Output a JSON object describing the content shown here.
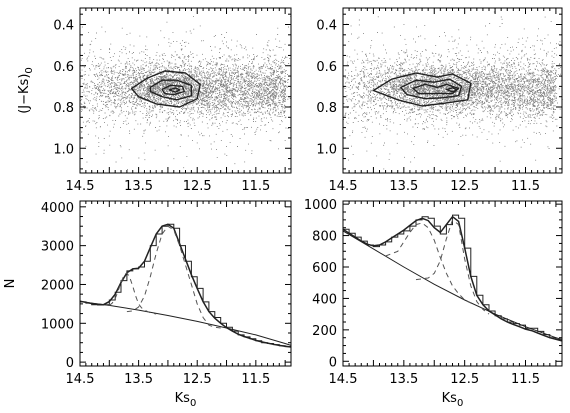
{
  "chart_data": [
    {
      "panel": "top-left",
      "type": "scatter",
      "xlabel": "",
      "ylabel": "(J−Ks)0",
      "xlim": [
        14.5,
        10.9
      ],
      "ylim": [
        1.12,
        0.32
      ],
      "xticks": [
        "14.5",
        "13.5",
        "12.5",
        "11.5"
      ],
      "xtick_values": [
        14.5,
        13.5,
        12.5,
        11.5
      ],
      "yticks": [
        "0.4",
        "0.6",
        "0.8",
        "1.0"
      ],
      "ytick_values": [
        0.4,
        0.6,
        0.8,
        1.0
      ],
      "point_color": "#555555",
      "line_color": "#222222",
      "contours": [
        {
          "level": 1,
          "points": [
            [
              13.62,
              0.71
            ],
            [
              13.35,
              0.66
            ],
            [
              13.05,
              0.625
            ],
            [
              12.7,
              0.635
            ],
            [
              12.45,
              0.69
            ],
            [
              12.5,
              0.76
            ],
            [
              12.8,
              0.8
            ],
            [
              13.2,
              0.785
            ],
            [
              13.5,
              0.75
            ],
            [
              13.62,
              0.71
            ]
          ]
        },
        {
          "level": 2,
          "points": [
            [
              13.3,
              0.705
            ],
            [
              13.1,
              0.67
            ],
            [
              12.85,
              0.67
            ],
            [
              12.6,
              0.695
            ],
            [
              12.6,
              0.745
            ],
            [
              12.85,
              0.765
            ],
            [
              13.1,
              0.75
            ],
            [
              13.3,
              0.725
            ],
            [
              13.3,
              0.705
            ]
          ]
        },
        {
          "level": 3,
          "points": [
            [
              13.1,
              0.715
            ],
            [
              12.95,
              0.695
            ],
            [
              12.75,
              0.7
            ],
            [
              12.72,
              0.725
            ],
            [
              12.9,
              0.74
            ],
            [
              13.05,
              0.735
            ],
            [
              13.1,
              0.715
            ]
          ]
        },
        {
          "level": 4,
          "points": [
            [
              12.98,
              0.717
            ],
            [
              12.87,
              0.708
            ],
            [
              12.8,
              0.717
            ],
            [
              12.87,
              0.728
            ],
            [
              12.98,
              0.717
            ]
          ]
        }
      ]
    },
    {
      "panel": "top-right",
      "type": "scatter",
      "xlabel": "",
      "ylabel": "",
      "xlim": [
        14.5,
        10.9
      ],
      "ylim": [
        1.12,
        0.32
      ],
      "xticks": [
        "14.5",
        "13.5",
        "12.5",
        "11.5"
      ],
      "xtick_values": [
        14.5,
        13.5,
        12.5,
        11.5
      ],
      "yticks": [
        "0.4",
        "0.6",
        "0.8",
        "1.0"
      ],
      "ytick_values": [
        0.4,
        0.6,
        0.8,
        1.0
      ],
      "point_color": "#555555",
      "line_color": "#222222",
      "contours": [
        {
          "level": 1,
          "points": [
            [
              14.0,
              0.72
            ],
            [
              13.7,
              0.665
            ],
            [
              13.3,
              0.635
            ],
            [
              12.95,
              0.655
            ],
            [
              12.7,
              0.64
            ],
            [
              12.4,
              0.685
            ],
            [
              12.45,
              0.765
            ],
            [
              12.8,
              0.78
            ],
            [
              13.2,
              0.795
            ],
            [
              13.6,
              0.765
            ],
            [
              14.0,
              0.72
            ]
          ]
        },
        {
          "level": 2,
          "points": [
            [
              13.55,
              0.705
            ],
            [
              13.3,
              0.67
            ],
            [
              13.0,
              0.68
            ],
            [
              12.75,
              0.665
            ],
            [
              12.55,
              0.7
            ],
            [
              12.6,
              0.745
            ],
            [
              12.85,
              0.755
            ],
            [
              13.15,
              0.76
            ],
            [
              13.45,
              0.74
            ],
            [
              13.55,
              0.705
            ]
          ]
        },
        {
          "level": 3,
          "points": [
            [
              13.35,
              0.71
            ],
            [
              13.15,
              0.69
            ],
            [
              12.95,
              0.705
            ],
            [
              12.8,
              0.69
            ],
            [
              12.6,
              0.71
            ],
            [
              12.7,
              0.735
            ],
            [
              12.95,
              0.735
            ],
            [
              13.25,
              0.735
            ],
            [
              13.35,
              0.71
            ]
          ]
        },
        {
          "level": 4,
          "points": [
            [
              12.8,
              0.715
            ],
            [
              12.7,
              0.707
            ],
            [
              12.63,
              0.717
            ],
            [
              12.7,
              0.727
            ],
            [
              12.8,
              0.715
            ]
          ]
        }
      ]
    },
    {
      "panel": "bottom-left",
      "type": "line",
      "xlabel": "Ks0",
      "ylabel": "N",
      "xlim": [
        14.5,
        10.9
      ],
      "ylim": [
        -100,
        4150
      ],
      "xticks": [
        "14.5",
        "13.5",
        "12.5",
        "11.5"
      ],
      "xtick_values": [
        14.5,
        13.5,
        12.5,
        11.5
      ],
      "yticks": [
        "0",
        "1000",
        "2000",
        "3000",
        "4000"
      ],
      "ytick_values": [
        0,
        1000,
        2000,
        3000,
        4000
      ],
      "line_color": "#222222",
      "histogram": {
        "bin_width": 0.1,
        "x": [
          14.5,
          14.4,
          14.3,
          14.2,
          14.1,
          14.0,
          13.9,
          13.8,
          13.7,
          13.6,
          13.5,
          13.4,
          13.3,
          13.2,
          13.1,
          13.0,
          12.9,
          12.8,
          12.7,
          12.6,
          12.5,
          12.4,
          12.3,
          12.2,
          12.1,
          12.0,
          11.9,
          11.8,
          11.7,
          11.6,
          11.5,
          11.4,
          11.3,
          11.2,
          11.1,
          11.0
        ],
        "counts": [
          1550,
          1520,
          1480,
          1470,
          1480,
          1600,
          1800,
          2100,
          2350,
          2400,
          2450,
          2600,
          3000,
          3300,
          3500,
          3550,
          3450,
          3000,
          2600,
          2200,
          1900,
          1550,
          1300,
          1150,
          1000,
          900,
          800,
          700,
          650,
          600,
          550,
          500,
          480,
          450,
          420,
          400
        ]
      },
      "curves": [
        {
          "name": "total",
          "style": "solid",
          "x": [
            14.5,
            14.4,
            14.3,
            14.2,
            14.1,
            14.0,
            13.9,
            13.8,
            13.7,
            13.6,
            13.5,
            13.4,
            13.3,
            13.2,
            13.1,
            13.0,
            12.9,
            12.8,
            12.7,
            12.6,
            12.5,
            12.4,
            12.3,
            12.2,
            12.1,
            12.0,
            11.9,
            11.8,
            11.7,
            11.6,
            11.5,
            11.4,
            11.3,
            11.2,
            11.1,
            11.0,
            10.9
          ],
          "y": [
            1570,
            1540,
            1510,
            1490,
            1480,
            1560,
            1750,
            2050,
            2300,
            2400,
            2420,
            2600,
            2950,
            3300,
            3500,
            3550,
            3450,
            3050,
            2650,
            2250,
            1900,
            1560,
            1300,
            1130,
            1000,
            890,
            800,
            720,
            660,
            610,
            560,
            520,
            490,
            460,
            430,
            410,
            390
          ]
        },
        {
          "name": "background",
          "style": "solid",
          "x": [
            14.5,
            14.0,
            13.5,
            13.0,
            12.5,
            12.0,
            11.5,
            11.0,
            10.9
          ],
          "y": [
            1560,
            1460,
            1340,
            1200,
            1050,
            880,
            700,
            480,
            430
          ]
        },
        {
          "name": "component-1",
          "style": "dashed",
          "x": [
            14.0,
            13.95,
            13.9,
            13.85,
            13.8,
            13.75,
            13.7,
            13.65,
            13.6,
            13.55,
            13.5,
            13.45,
            13.4,
            13.3,
            13.2
          ],
          "y": [
            1460,
            1520,
            1640,
            1830,
            2050,
            2240,
            2300,
            2180,
            1950,
            1700,
            1500,
            1400,
            1340,
            1270,
            1240
          ]
        },
        {
          "name": "component-2",
          "style": "dashed",
          "x": [
            13.7,
            13.6,
            13.5,
            13.4,
            13.3,
            13.2,
            13.1,
            13.0,
            12.9,
            12.8,
            12.7,
            12.6,
            12.5,
            12.4,
            12.3,
            12.2,
            12.1
          ],
          "y": [
            1300,
            1320,
            1420,
            1700,
            2200,
            2800,
            3300,
            3500,
            3400,
            3000,
            2500,
            2000,
            1500,
            1150,
            950,
            900,
            880
          ]
        }
      ]
    },
    {
      "panel": "bottom-right",
      "type": "line",
      "xlabel": "Ks0",
      "ylabel": "",
      "xlim": [
        14.5,
        10.9
      ],
      "ylim": [
        -30,
        1020
      ],
      "xticks": [
        "14.5",
        "13.5",
        "12.5",
        "11.5"
      ],
      "xtick_values": [
        14.5,
        13.5,
        12.5,
        11.5
      ],
      "yticks": [
        "0",
        "200",
        "400",
        "600",
        "800",
        "1000"
      ],
      "ytick_values": [
        0,
        200,
        400,
        600,
        800,
        1000
      ],
      "line_color": "#222222",
      "histogram": {
        "bin_width": 0.1,
        "x": [
          14.5,
          14.4,
          14.3,
          14.2,
          14.1,
          14.0,
          13.9,
          13.8,
          13.7,
          13.6,
          13.5,
          13.4,
          13.3,
          13.2,
          13.1,
          13.0,
          12.9,
          12.8,
          12.7,
          12.6,
          12.5,
          12.4,
          12.3,
          12.2,
          12.1,
          12.0,
          11.9,
          11.8,
          11.7,
          11.6,
          11.5,
          11.4,
          11.3,
          11.2,
          11.1,
          11.0
        ],
        "counts": [
          840,
          815,
          790,
          765,
          740,
          730,
          740,
          760,
          790,
          810,
          830,
          860,
          900,
          920,
          910,
          860,
          810,
          870,
          930,
          910,
          720,
          540,
          420,
          360,
          320,
          290,
          270,
          250,
          240,
          230,
          210,
          210,
          190,
          170,
          150,
          140
        ]
      },
      "curves": [
        {
          "name": "total",
          "style": "solid",
          "x": [
            14.5,
            14.4,
            14.3,
            14.2,
            14.1,
            14.0,
            13.9,
            13.8,
            13.7,
            13.6,
            13.5,
            13.4,
            13.3,
            13.2,
            13.1,
            13.0,
            12.9,
            12.8,
            12.7,
            12.6,
            12.5,
            12.4,
            12.3,
            12.2,
            12.1,
            12.0,
            11.9,
            11.8,
            11.7,
            11.6,
            11.5,
            11.4,
            11.3,
            11.2,
            11.1,
            11.0,
            10.9
          ],
          "y": [
            840,
            815,
            790,
            765,
            745,
            735,
            740,
            760,
            785,
            810,
            835,
            865,
            895,
            910,
            895,
            850,
            820,
            870,
            920,
            890,
            720,
            540,
            420,
            360,
            320,
            295,
            270,
            250,
            235,
            220,
            205,
            195,
            180,
            165,
            150,
            140,
            130
          ]
        },
        {
          "name": "background",
          "style": "solid",
          "x": [
            14.5,
            14.0,
            13.5,
            13.0,
            12.5,
            12.0,
            11.5,
            11.0,
            10.9
          ],
          "y": [
            830,
            715,
            600,
            490,
            390,
            300,
            220,
            150,
            140
          ]
        },
        {
          "name": "component-1",
          "style": "dashed",
          "x": [
            13.8,
            13.6,
            13.5,
            13.4,
            13.3,
            13.2,
            13.1,
            13.0,
            12.9,
            12.8,
            12.7,
            12.6,
            12.5,
            12.4
          ],
          "y": [
            670,
            700,
            760,
            820,
            870,
            880,
            850,
            770,
            660,
            560,
            480,
            430,
            390,
            370
          ]
        },
        {
          "name": "component-2",
          "style": "dashed",
          "x": [
            13.3,
            13.1,
            13.0,
            12.9,
            12.8,
            12.7,
            12.6,
            12.5,
            12.4,
            12.3,
            12.2,
            12.1
          ],
          "y": [
            520,
            530,
            560,
            640,
            780,
            900,
            870,
            650,
            480,
            380,
            330,
            300
          ]
        }
      ]
    }
  ]
}
